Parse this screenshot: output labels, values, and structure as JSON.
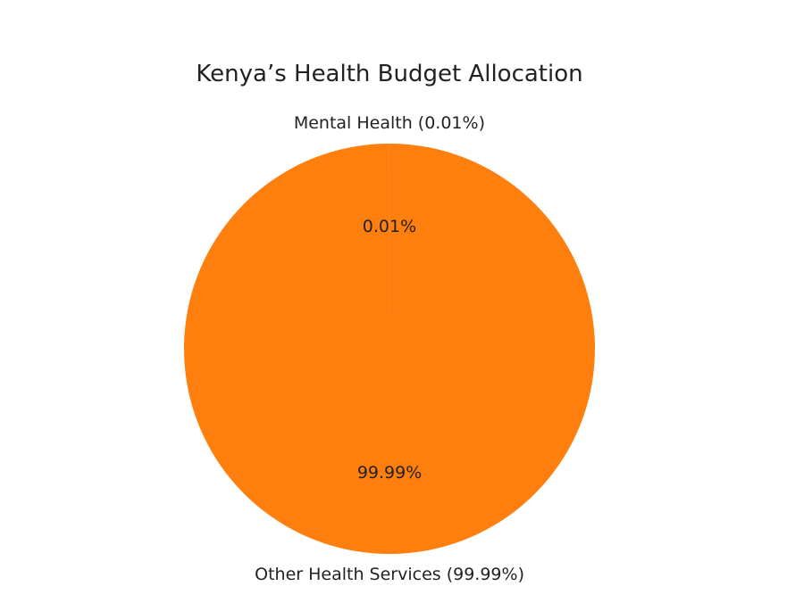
{
  "chart_data": {
    "type": "pie",
    "title": "Kenya’s Health Budget Allocation",
    "slices": [
      {
        "label": "Mental Health (0.01%)",
        "value": 0.01,
        "pct_label": "0.01%",
        "color": "#1f77b4"
      },
      {
        "label": "Other Health Services (99.99%)",
        "value": 99.99,
        "pct_label": "99.99%",
        "color": "#ff7f0e"
      }
    ],
    "start_angle": 90,
    "direction": "counterclockwise"
  }
}
